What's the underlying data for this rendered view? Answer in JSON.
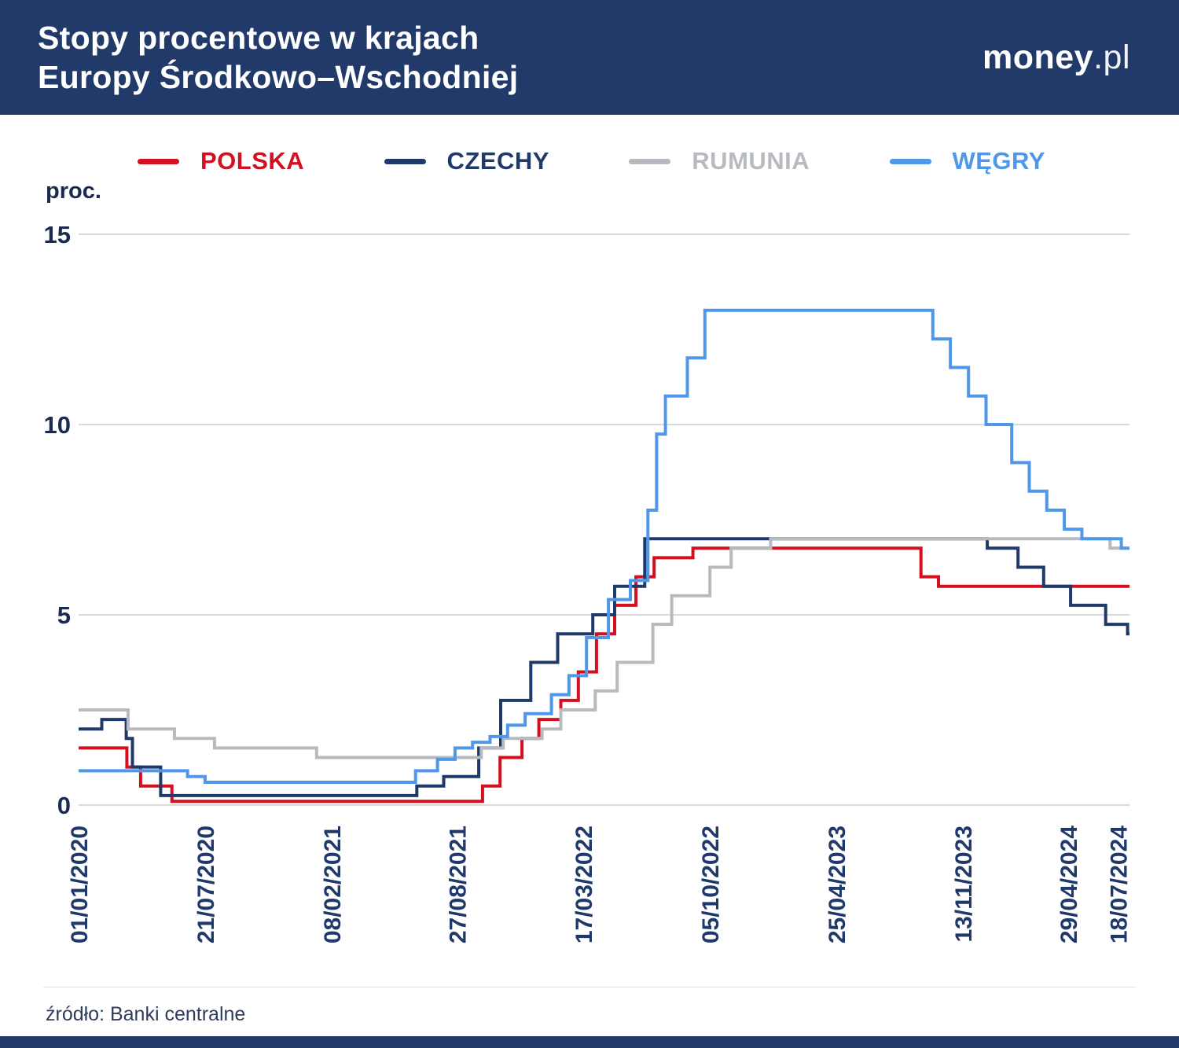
{
  "header": {
    "title_line1": "Stopy procentowe w krajach",
    "title_line2": "Europy Środkowo–Wschodniej",
    "logo_bold": "money",
    "logo_suffix": ".pl",
    "bg_color": "#223a6a"
  },
  "footer": {
    "source": "źródło: Banki centralne"
  },
  "theme": {
    "grid_color": "#c9cdd2",
    "axis_label_color": "#1a2b4f",
    "xtick_color": "#20396b"
  },
  "chart_data": {
    "type": "line",
    "step": true,
    "grid": "horizontal",
    "legend_position": "top",
    "ylabel": "proc.",
    "ylim": [
      0,
      15
    ],
    "yticks": [
      0,
      5,
      10,
      15
    ],
    "x_start": "2020-01-01",
    "x_end": "2024-08-05",
    "xtick_labels": [
      "01/01/2020",
      "21/07/2020",
      "08/02/2021",
      "27/08/2021",
      "17/03/2022",
      "05/10/2022",
      "25/04/2023",
      "13/11/2023",
      "29/04/2024",
      "18/07/2024"
    ],
    "series": [
      {
        "name": "POLSKA",
        "key": "polska",
        "color": "#d2101f",
        "points": [
          [
            "2020-01-01",
            1.5
          ],
          [
            "2020-03-18",
            1.0
          ],
          [
            "2020-04-09",
            0.5
          ],
          [
            "2020-05-29",
            0.1
          ],
          [
            "2021-10-07",
            0.5
          ],
          [
            "2021-11-04",
            1.25
          ],
          [
            "2021-12-09",
            1.75
          ],
          [
            "2022-01-05",
            2.25
          ],
          [
            "2022-02-09",
            2.75
          ],
          [
            "2022-03-09",
            3.5
          ],
          [
            "2022-04-07",
            4.5
          ],
          [
            "2022-05-06",
            5.25
          ],
          [
            "2022-06-09",
            6.0
          ],
          [
            "2022-07-08",
            6.5
          ],
          [
            "2022-09-08",
            6.75
          ],
          [
            "2023-09-07",
            6.0
          ],
          [
            "2023-10-05",
            5.75
          ]
        ]
      },
      {
        "name": "CZECHY",
        "key": "czechy",
        "color": "#1f3a68",
        "points": [
          [
            "2020-01-01",
            2.0
          ],
          [
            "2020-02-07",
            2.25
          ],
          [
            "2020-03-17",
            1.75
          ],
          [
            "2020-03-27",
            1.0
          ],
          [
            "2020-05-11",
            0.25
          ],
          [
            "2021-06-24",
            0.5
          ],
          [
            "2021-08-06",
            0.75
          ],
          [
            "2021-10-01",
            1.5
          ],
          [
            "2021-11-05",
            2.75
          ],
          [
            "2021-12-23",
            3.75
          ],
          [
            "2022-02-04",
            4.5
          ],
          [
            "2022-04-01",
            5.0
          ],
          [
            "2022-05-06",
            5.75
          ],
          [
            "2022-06-23",
            7.0
          ],
          [
            "2023-12-22",
            6.75
          ],
          [
            "2024-02-09",
            6.25
          ],
          [
            "2024-03-21",
            5.75
          ],
          [
            "2024-05-03",
            5.25
          ],
          [
            "2024-06-28",
            4.75
          ],
          [
            "2024-08-02",
            4.5
          ]
        ]
      },
      {
        "name": "RUMUNIA",
        "key": "rumunia",
        "color": "#b7babe",
        "points": [
          [
            "2020-01-01",
            2.5
          ],
          [
            "2020-03-20",
            2.0
          ],
          [
            "2020-06-02",
            1.75
          ],
          [
            "2020-08-05",
            1.5
          ],
          [
            "2021-01-15",
            1.25
          ],
          [
            "2021-10-05",
            1.5
          ],
          [
            "2021-11-09",
            1.75
          ],
          [
            "2022-01-10",
            2.0
          ],
          [
            "2022-02-09",
            2.5
          ],
          [
            "2022-04-05",
            3.0
          ],
          [
            "2022-05-10",
            3.75
          ],
          [
            "2022-07-06",
            4.75
          ],
          [
            "2022-08-05",
            5.5
          ],
          [
            "2022-10-05",
            6.25
          ],
          [
            "2022-11-08",
            6.75
          ],
          [
            "2023-01-10",
            7.0
          ],
          [
            "2024-07-05",
            6.75
          ]
        ]
      },
      {
        "name": "WĘGRY",
        "key": "wegry",
        "color": "#4f97e8",
        "points": [
          [
            "2020-01-01",
            0.9
          ],
          [
            "2020-06-23",
            0.75
          ],
          [
            "2020-07-21",
            0.6
          ],
          [
            "2021-06-22",
            0.9
          ],
          [
            "2021-07-27",
            1.2
          ],
          [
            "2021-08-24",
            1.5
          ],
          [
            "2021-09-21",
            1.65
          ],
          [
            "2021-10-19",
            1.8
          ],
          [
            "2021-11-16",
            2.1
          ],
          [
            "2021-12-14",
            2.4
          ],
          [
            "2022-01-25",
            2.9
          ],
          [
            "2022-02-22",
            3.4
          ],
          [
            "2022-03-22",
            4.4
          ],
          [
            "2022-04-26",
            5.4
          ],
          [
            "2022-05-31",
            5.9
          ],
          [
            "2022-06-28",
            7.75
          ],
          [
            "2022-07-12",
            9.75
          ],
          [
            "2022-07-26",
            10.75
          ],
          [
            "2022-08-30",
            11.75
          ],
          [
            "2022-09-27",
            13.0
          ],
          [
            "2023-09-26",
            12.25
          ],
          [
            "2023-10-24",
            11.5
          ],
          [
            "2023-11-22",
            10.75
          ],
          [
            "2023-12-20",
            10.0
          ],
          [
            "2024-01-30",
            9.0
          ],
          [
            "2024-02-27",
            8.25
          ],
          [
            "2024-03-26",
            7.75
          ],
          [
            "2024-04-23",
            7.25
          ],
          [
            "2024-05-21",
            7.0
          ],
          [
            "2024-07-23",
            6.75
          ]
        ]
      }
    ]
  }
}
